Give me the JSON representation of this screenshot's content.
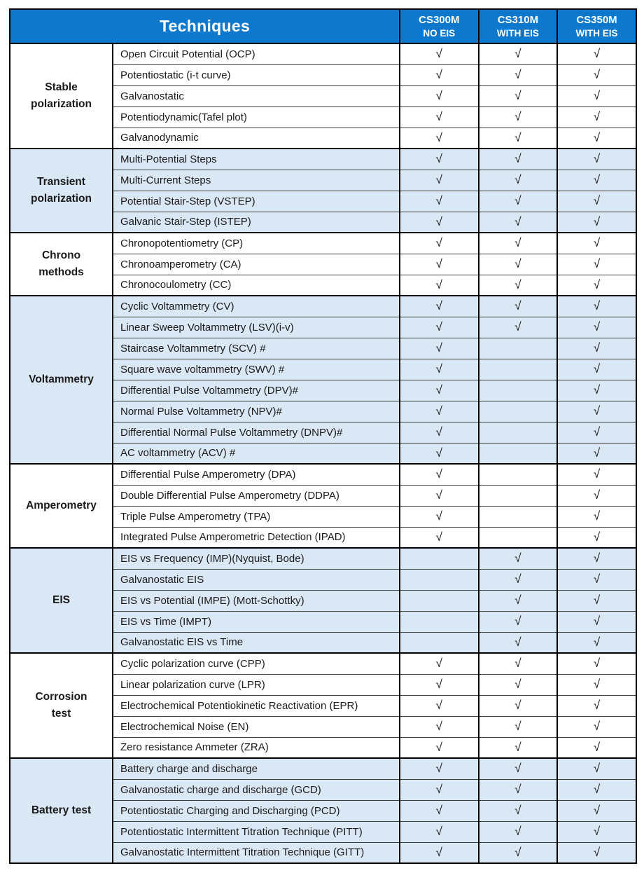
{
  "header": {
    "techniques_label": "Techniques",
    "models": [
      {
        "name": "CS300M",
        "eis": "NO EIS"
      },
      {
        "name": "CS310M",
        "eis": "WITH EIS"
      },
      {
        "name": "CS350M",
        "eis": "WITH EIS"
      }
    ]
  },
  "check_symbol": "√",
  "colors": {
    "header_bg": "#0d78cc",
    "header_text": "#ffffff",
    "row_bg": "#ffffff",
    "row_alt_bg": "#dae7f5",
    "border_strong": "#000000",
    "border_light": "#3c3c3c",
    "text": "#1a1a1a"
  },
  "groups": [
    {
      "name": "Stable polarization",
      "rows": [
        {
          "technique": "Open Circuit Potential (OCP)",
          "checks": [
            true,
            true,
            true
          ]
        },
        {
          "technique": "Potentiostatic (i-t curve)",
          "checks": [
            true,
            true,
            true
          ]
        },
        {
          "technique": "Galvanostatic",
          "checks": [
            true,
            true,
            true
          ]
        },
        {
          "technique": "Potentiodynamic(Tafel plot)",
          "checks": [
            true,
            true,
            true
          ]
        },
        {
          "technique": "Galvanodynamic",
          "checks": [
            true,
            true,
            true
          ]
        }
      ]
    },
    {
      "name": "Transient polarization",
      "rows": [
        {
          "technique": "Multi-Potential Steps",
          "checks": [
            true,
            true,
            true
          ]
        },
        {
          "technique": "Multi-Current Steps",
          "checks": [
            true,
            true,
            true
          ]
        },
        {
          "technique": "Potential Stair-Step (VSTEP)",
          "checks": [
            true,
            true,
            true
          ]
        },
        {
          "technique": "Galvanic Stair-Step (ISTEP)",
          "checks": [
            true,
            true,
            true
          ]
        }
      ]
    },
    {
      "name": "Chrono methods",
      "rows": [
        {
          "technique": "Chronopotentiometry (CP)",
          "checks": [
            true,
            true,
            true
          ]
        },
        {
          "technique": "Chronoamperometry (CA)",
          "checks": [
            true,
            true,
            true
          ]
        },
        {
          "technique": "Chronocoulometry (CC)",
          "checks": [
            true,
            true,
            true
          ]
        }
      ]
    },
    {
      "name": "Voltammetry",
      "rows": [
        {
          "technique": "Cyclic Voltammetry (CV)",
          "checks": [
            true,
            true,
            true
          ]
        },
        {
          "technique": "Linear Sweep Voltammetry (LSV)(i-v)",
          "checks": [
            true,
            true,
            true
          ]
        },
        {
          "technique": "Staircase Voltammetry (SCV) #",
          "checks": [
            true,
            false,
            true
          ]
        },
        {
          "technique": "Square wave voltammetry (SWV) #",
          "checks": [
            true,
            false,
            true
          ]
        },
        {
          "technique": "Differential Pulse Voltammetry (DPV)#",
          "checks": [
            true,
            false,
            true
          ]
        },
        {
          "technique": "Normal Pulse Voltammetry (NPV)#",
          "checks": [
            true,
            false,
            true
          ]
        },
        {
          "technique": "Differential Normal Pulse Voltammetry (DNPV)#",
          "checks": [
            true,
            false,
            true
          ]
        },
        {
          "technique": "AC voltammetry (ACV) #",
          "checks": [
            true,
            false,
            true
          ]
        }
      ]
    },
    {
      "name": "Amperometry",
      "rows": [
        {
          "technique": "Differential Pulse Amperometry (DPA)",
          "checks": [
            true,
            false,
            true
          ]
        },
        {
          "technique": "Double Differential Pulse Amperometry (DDPA)",
          "checks": [
            true,
            false,
            true
          ]
        },
        {
          "technique": "Triple Pulse Amperometry (TPA)",
          "checks": [
            true,
            false,
            true
          ]
        },
        {
          "technique": "Integrated Pulse Amperometric Detection (IPAD)",
          "checks": [
            true,
            false,
            true
          ]
        }
      ]
    },
    {
      "name": "EIS",
      "rows": [
        {
          "technique": "EIS vs Frequency (IMP)(Nyquist, Bode)",
          "checks": [
            false,
            true,
            true
          ]
        },
        {
          "technique": "Galvanostatic EIS",
          "checks": [
            false,
            true,
            true
          ]
        },
        {
          "technique": "EIS vs Potential (IMPE) (Mott-Schottky)",
          "checks": [
            false,
            true,
            true
          ]
        },
        {
          "technique": "EIS vs Time (IMPT)",
          "checks": [
            false,
            true,
            true
          ]
        },
        {
          "technique": "Galvanostatic EIS vs Time",
          "checks": [
            false,
            true,
            true
          ]
        }
      ]
    },
    {
      "name": "Corrosion test",
      "rows": [
        {
          "technique": "Cyclic polarization curve (CPP)",
          "checks": [
            true,
            true,
            true
          ]
        },
        {
          "technique": "Linear polarization curve (LPR)",
          "checks": [
            true,
            true,
            true
          ]
        },
        {
          "technique": "Electrochemical Potentiokinetic Reactivation (EPR)",
          "checks": [
            true,
            true,
            true
          ]
        },
        {
          "technique": "Electrochemical Noise (EN)",
          "checks": [
            true,
            true,
            true
          ]
        },
        {
          "technique": "Zero resistance Ammeter (ZRA)",
          "checks": [
            true,
            true,
            true
          ]
        }
      ]
    },
    {
      "name": "Battery test",
      "rows": [
        {
          "technique": "Battery charge and discharge",
          "checks": [
            true,
            true,
            true
          ]
        },
        {
          "technique": "Galvanostatic charge and discharge (GCD)",
          "checks": [
            true,
            true,
            true
          ]
        },
        {
          "technique": "Potentiostatic Charging and Discharging (PCD)",
          "checks": [
            true,
            true,
            true
          ]
        },
        {
          "technique": "Potentiostatic Intermittent Titration Technique (PITT)",
          "checks": [
            true,
            true,
            true
          ]
        },
        {
          "technique": "Galvanostatic Intermittent Titration Technique (GITT)",
          "checks": [
            true,
            true,
            true
          ]
        }
      ]
    }
  ]
}
